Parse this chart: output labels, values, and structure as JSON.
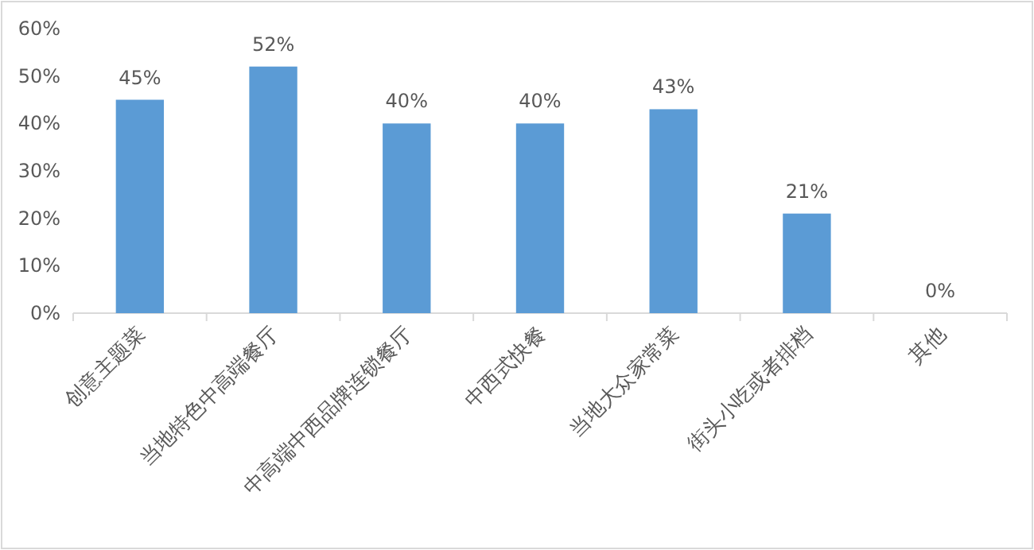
{
  "chart_data": {
    "type": "bar",
    "categories": [
      "创意主题菜",
      "当地特色中高端餐厅",
      "中高端中西品牌连锁餐厅",
      "中西式快餐",
      "当地大众家常菜",
      "街头小吃或者排档",
      "其他"
    ],
    "values": [
      45,
      52,
      40,
      40,
      43,
      21,
      0
    ],
    "value_labels": [
      "45%",
      "52%",
      "40%",
      "40%",
      "43%",
      "21%",
      "0%"
    ],
    "color": "#5b9bd5",
    "ylim": [
      0,
      60
    ],
    "yticks": [
      {
        "value": 0,
        "label": "0%"
      },
      {
        "value": 10,
        "label": "10%"
      },
      {
        "value": 20,
        "label": "20%"
      },
      {
        "value": 30,
        "label": "30%"
      },
      {
        "value": 40,
        "label": "40%"
      },
      {
        "value": 50,
        "label": "50%"
      },
      {
        "value": 60,
        "label": "60%"
      }
    ],
    "grid": false
  }
}
